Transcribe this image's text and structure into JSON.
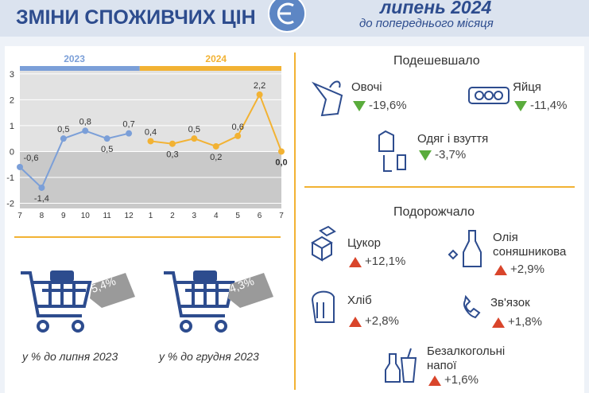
{
  "header": {
    "title": "ЗМІНИ СПОЖИВЧИХ ЦІН",
    "period": "липень 2024",
    "subtitle": "до попереднього місяця"
  },
  "chart_data": {
    "type": "line",
    "categories": [
      "7",
      "8",
      "9",
      "10",
      "11",
      "12",
      "1",
      "2",
      "3",
      "4",
      "5",
      "6",
      "7"
    ],
    "series": [
      {
        "name": "2023",
        "color": "#7b9fd8",
        "values": [
          -0.6,
          -1.4,
          0.5,
          0.8,
          0.5,
          0.7,
          null,
          null,
          null,
          null,
          null,
          null,
          null
        ],
        "value_labels": [
          "-0,6",
          "-1,4",
          "0,5",
          "0,8",
          "0,5",
          "0,7",
          null,
          null,
          null,
          null,
          null,
          null,
          null
        ]
      },
      {
        "name": "2024",
        "color": "#f2b233",
        "values": [
          null,
          null,
          null,
          null,
          null,
          null,
          0.4,
          0.3,
          0.5,
          0.2,
          0.6,
          2.2,
          0.0
        ],
        "value_labels": [
          null,
          null,
          null,
          null,
          null,
          null,
          "0,4",
          "0,3",
          "0,5",
          "0,2",
          "0,6",
          "2,2",
          "0,0"
        ]
      }
    ],
    "ylim": [
      -2.2,
      3.15
    ],
    "yticks": [
      -2,
      -1,
      0,
      1,
      2,
      3
    ],
    "grid": true
  },
  "carts": [
    {
      "value": "5,4%",
      "caption": "у % до липня 2023"
    },
    {
      "value": "4,3%",
      "caption": "у % до грудня 2023"
    }
  ],
  "cheaper": {
    "title": "Подешевшало",
    "items": [
      {
        "name": "Овочі",
        "change": "-19,6%"
      },
      {
        "name": "Яйця",
        "change": "-11,4%"
      },
      {
        "name": "Одяг і взуття",
        "change": "-3,7%"
      }
    ]
  },
  "pricier": {
    "title": "Подорожчало",
    "items": [
      {
        "name": "Цукор",
        "change": "+12,1%"
      },
      {
        "name": "Олія соняшникова",
        "change": "+2,9%"
      },
      {
        "name": "Хліб",
        "change": "+2,8%"
      },
      {
        "name": "Зв'язок",
        "change": "+1,8%"
      },
      {
        "name": "Безалкогольні напої",
        "change": "+1,6%"
      }
    ]
  }
}
